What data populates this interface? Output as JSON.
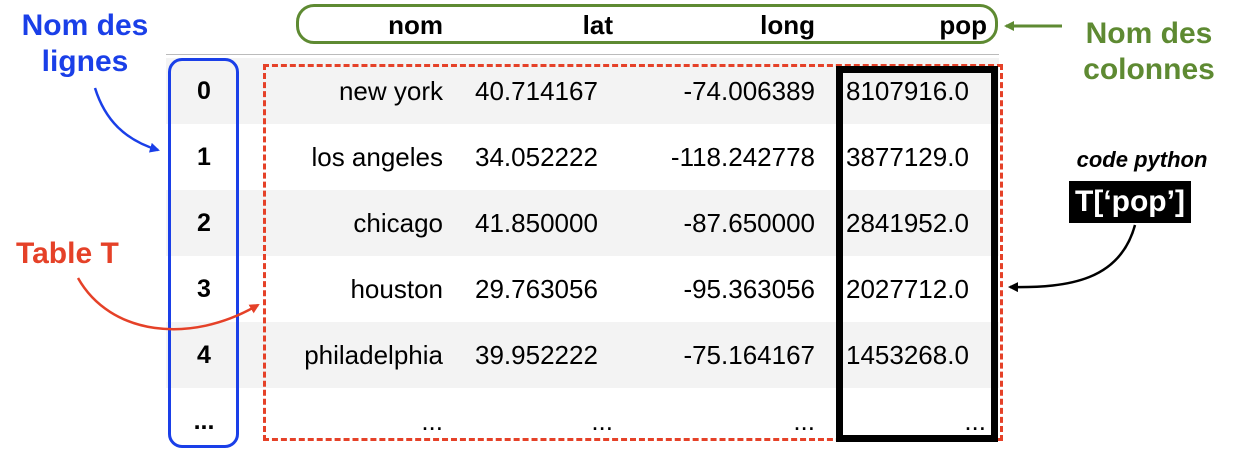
{
  "annotations": {
    "row_names": [
      "Nom des",
      "lignes"
    ],
    "column_names": [
      "Nom des",
      "colonnes"
    ],
    "table_label": "Table T",
    "code_caption": "code python",
    "code_snippet": "T[‘pop’]"
  },
  "table": {
    "columns": [
      "nom",
      "lat",
      "long",
      "pop"
    ],
    "index": [
      "0",
      "1",
      "2",
      "3",
      "4",
      "..."
    ],
    "rows": [
      [
        "new york",
        "40.714167",
        "-74.006389",
        "8107916.0"
      ],
      [
        "los angeles",
        "34.052222",
        "-118.242778",
        "3877129.0"
      ],
      [
        "chicago",
        "41.850000",
        "-87.650000",
        "2841952.0"
      ],
      [
        "houston",
        "29.763056",
        "-95.363056",
        "2027712.0"
      ],
      [
        "philadelphia",
        "39.952222",
        "-75.164167",
        "1453268.0"
      ],
      [
        "...",
        "...",
        "...",
        "..."
      ]
    ]
  },
  "colors": {
    "blue": "#1a3fe8",
    "green": "#5e8a32",
    "red": "#e54128",
    "black": "#000000",
    "row_shade": "#f3f3f3"
  }
}
